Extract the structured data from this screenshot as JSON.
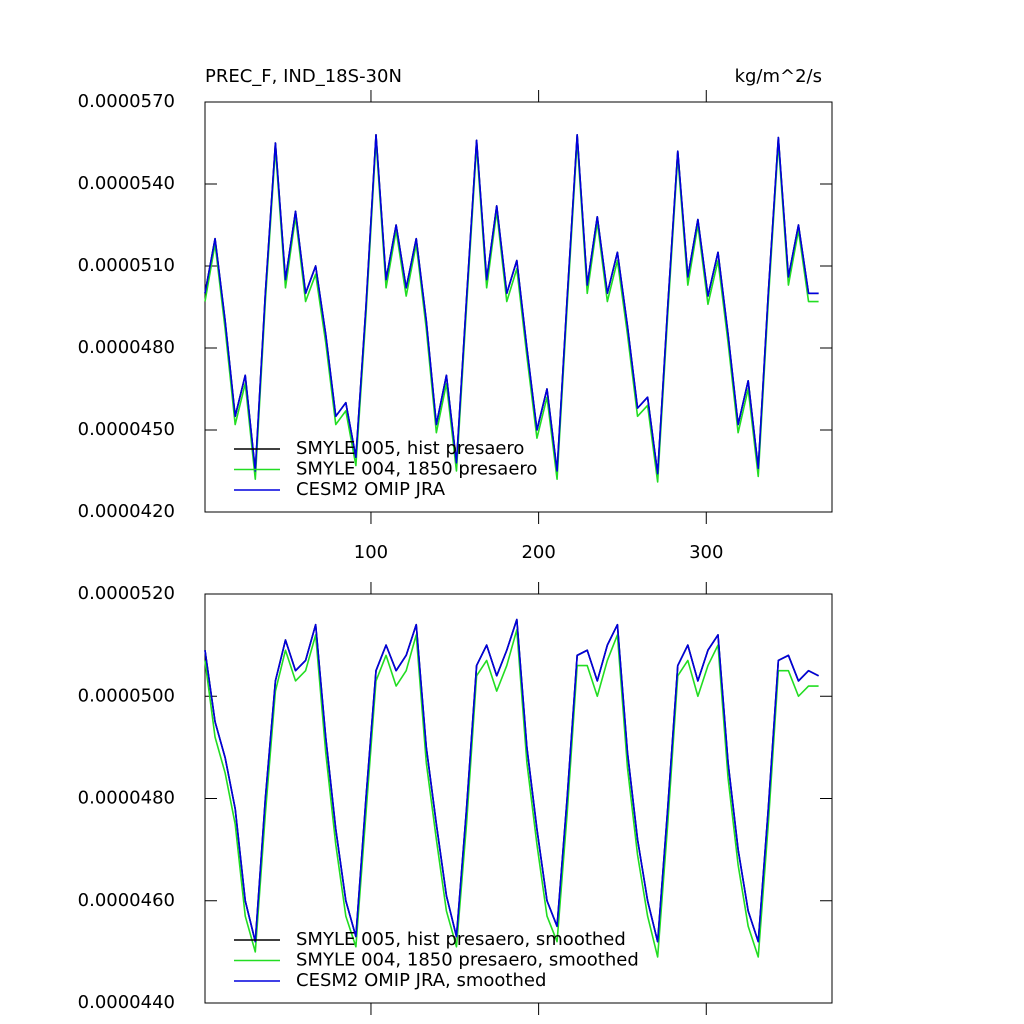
{
  "chart_data": [
    {
      "type": "line",
      "title": "PREC_F, IND_18S-30N",
      "units": "kg/m^2/s",
      "legend": "lower left",
      "xtick_labels_shown": true,
      "xlim": [
        1,
        375
      ],
      "xticks": [
        100,
        200,
        300
      ],
      "ylim": [
        4.2e-05,
        5.7e-05
      ],
      "yticks": [
        {
          "value": 4.2e-05,
          "label": "0.0000420"
        },
        {
          "value": 4.5e-05,
          "label": "0.0000450"
        },
        {
          "value": 4.8e-05,
          "label": "0.0000480"
        },
        {
          "value": 5.1e-05,
          "label": "0.0000510"
        },
        {
          "value": 5.4e-05,
          "label": "0.0000540"
        },
        {
          "value": 5.7e-05,
          "label": "0.0000570"
        }
      ],
      "x": [
        1,
        7,
        13,
        19,
        25,
        31,
        37,
        43,
        49,
        55,
        61,
        67,
        73,
        79,
        85,
        91,
        97,
        103,
        109,
        115,
        121,
        127,
        133,
        139,
        145,
        151,
        157,
        163,
        169,
        175,
        181,
        187,
        193,
        199,
        205,
        211,
        217,
        223,
        229,
        235,
        241,
        247,
        253,
        259,
        265,
        271,
        277,
        283,
        289,
        295,
        301,
        307,
        313,
        319,
        325,
        331,
        337,
        343,
        349,
        355,
        361,
        367
      ],
      "series": [
        {
          "name": "SMYLE 005, hist presaero",
          "color": "#000000",
          "values": [
            5e-05,
            5.2e-05,
            4.9e-05,
            4.55e-05,
            4.7e-05,
            4.35e-05,
            5e-05,
            5.55e-05,
            5.05e-05,
            5.3e-05,
            5e-05,
            5.1e-05,
            4.85e-05,
            4.55e-05,
            4.6e-05,
            4.4e-05,
            4.95e-05,
            5.58e-05,
            5.05e-05,
            5.25e-05,
            5.02e-05,
            5.2e-05,
            4.9e-05,
            4.52e-05,
            4.7e-05,
            4.38e-05,
            4.98e-05,
            5.56e-05,
            5.05e-05,
            5.32e-05,
            5e-05,
            5.12e-05,
            4.8e-05,
            4.5e-05,
            4.65e-05,
            4.35e-05,
            4.98e-05,
            5.58e-05,
            5.03e-05,
            5.28e-05,
            5e-05,
            5.15e-05,
            4.88e-05,
            4.58e-05,
            4.62e-05,
            4.34e-05,
            4.95e-05,
            5.52e-05,
            5.06e-05,
            5.27e-05,
            4.99e-05,
            5.15e-05,
            4.85e-05,
            4.52e-05,
            4.68e-05,
            4.36e-05,
            5e-05,
            5.57e-05,
            5.06e-05,
            5.25e-05,
            5e-05,
            5e-05
          ]
        },
        {
          "name": "SMYLE 004, 1850 presaero",
          "color": "#22dd22",
          "values": [
            4.97e-05,
            5.18e-05,
            4.87e-05,
            4.52e-05,
            4.67e-05,
            4.32e-05,
            4.97e-05,
            5.53e-05,
            5.02e-05,
            5.28e-05,
            4.97e-05,
            5.07e-05,
            4.82e-05,
            4.52e-05,
            4.57e-05,
            4.37e-05,
            4.92e-05,
            5.56e-05,
            5.02e-05,
            5.23e-05,
            4.99e-05,
            5.18e-05,
            4.87e-05,
            4.49e-05,
            4.67e-05,
            4.35e-05,
            4.95e-05,
            5.54e-05,
            5.02e-05,
            5.3e-05,
            4.97e-05,
            5.09e-05,
            4.77e-05,
            4.47e-05,
            4.62e-05,
            4.32e-05,
            4.95e-05,
            5.56e-05,
            5e-05,
            5.26e-05,
            4.97e-05,
            5.12e-05,
            4.85e-05,
            4.55e-05,
            4.59e-05,
            4.31e-05,
            4.92e-05,
            5.5e-05,
            5.03e-05,
            5.25e-05,
            4.96e-05,
            5.12e-05,
            4.82e-05,
            4.49e-05,
            4.65e-05,
            4.33e-05,
            4.97e-05,
            5.55e-05,
            5.03e-05,
            5.23e-05,
            4.97e-05,
            4.97e-05
          ]
        },
        {
          "name": "CESM2 OMIP JRA",
          "color": "#0000dd",
          "values": [
            5e-05,
            5.2e-05,
            4.9e-05,
            4.55e-05,
            4.7e-05,
            4.35e-05,
            5e-05,
            5.55e-05,
            5.05e-05,
            5.3e-05,
            5e-05,
            5.1e-05,
            4.85e-05,
            4.55e-05,
            4.6e-05,
            4.4e-05,
            4.95e-05,
            5.58e-05,
            5.05e-05,
            5.25e-05,
            5.02e-05,
            5.2e-05,
            4.9e-05,
            4.52e-05,
            4.7e-05,
            4.38e-05,
            4.98e-05,
            5.56e-05,
            5.05e-05,
            5.32e-05,
            5e-05,
            5.12e-05,
            4.8e-05,
            4.5e-05,
            4.65e-05,
            4.35e-05,
            4.98e-05,
            5.58e-05,
            5.03e-05,
            5.28e-05,
            5e-05,
            5.15e-05,
            4.88e-05,
            4.58e-05,
            4.62e-05,
            4.34e-05,
            4.95e-05,
            5.52e-05,
            5.06e-05,
            5.27e-05,
            4.99e-05,
            5.15e-05,
            4.85e-05,
            4.52e-05,
            4.68e-05,
            4.36e-05,
            5e-05,
            5.57e-05,
            5.06e-05,
            5.25e-05,
            5e-05,
            5e-05
          ]
        }
      ]
    },
    {
      "type": "line",
      "legend": "lower left",
      "xtick_labels_shown": false,
      "xlim": [
        1,
        375
      ],
      "xticks": [
        100,
        200,
        300
      ],
      "ylim": [
        4.4e-05,
        5.2e-05
      ],
      "yticks": [
        {
          "value": 4.4e-05,
          "label": "0.0000440"
        },
        {
          "value": 4.6e-05,
          "label": "0.0000460"
        },
        {
          "value": 4.8e-05,
          "label": "0.0000480"
        },
        {
          "value": 5e-05,
          "label": "0.0000500"
        },
        {
          "value": 5.2e-05,
          "label": "0.0000520"
        }
      ],
      "x": [
        1,
        7,
        13,
        19,
        25,
        31,
        37,
        43,
        49,
        55,
        61,
        67,
        73,
        79,
        85,
        91,
        97,
        103,
        109,
        115,
        121,
        127,
        133,
        139,
        145,
        151,
        157,
        163,
        169,
        175,
        181,
        187,
        193,
        199,
        205,
        211,
        217,
        223,
        229,
        235,
        241,
        247,
        253,
        259,
        265,
        271,
        277,
        283,
        289,
        295,
        301,
        307,
        313,
        319,
        325,
        331,
        337,
        343,
        349,
        355,
        361,
        367
      ],
      "series": [
        {
          "name": "SMYLE 005, hist presaero, smoothed",
          "color": "#000000",
          "values": [
            5.09e-05,
            4.95e-05,
            4.88e-05,
            4.78e-05,
            4.6e-05,
            4.52e-05,
            4.8e-05,
            5.03e-05,
            5.11e-05,
            5.05e-05,
            5.07e-05,
            5.14e-05,
            4.92e-05,
            4.74e-05,
            4.6e-05,
            4.53e-05,
            4.8e-05,
            5.05e-05,
            5.1e-05,
            5.05e-05,
            5.08e-05,
            5.14e-05,
            4.9e-05,
            4.75e-05,
            4.61e-05,
            4.53e-05,
            4.78e-05,
            5.06e-05,
            5.1e-05,
            5.04e-05,
            5.09e-05,
            5.15e-05,
            4.9e-05,
            4.74e-05,
            4.6e-05,
            4.55e-05,
            4.8e-05,
            5.08e-05,
            5.09e-05,
            5.03e-05,
            5.1e-05,
            5.14e-05,
            4.89e-05,
            4.72e-05,
            4.6e-05,
            4.52e-05,
            4.78e-05,
            5.06e-05,
            5.1e-05,
            5.03e-05,
            5.09e-05,
            5.12e-05,
            4.87e-05,
            4.7e-05,
            4.58e-05,
            4.52e-05,
            4.78e-05,
            5.07e-05,
            5.08e-05,
            5.03e-05,
            5.05e-05,
            5.04e-05
          ]
        },
        {
          "name": "SMYLE 004, 1850 presaero, smoothed",
          "color": "#22dd22",
          "values": [
            5.07e-05,
            4.92e-05,
            4.85e-05,
            4.75e-05,
            4.57e-05,
            4.5e-05,
            4.77e-05,
            5.01e-05,
            5.09e-05,
            5.03e-05,
            5.05e-05,
            5.12e-05,
            4.89e-05,
            4.71e-05,
            4.57e-05,
            4.51e-05,
            4.77e-05,
            5.03e-05,
            5.08e-05,
            5.02e-05,
            5.05e-05,
            5.12e-05,
            4.87e-05,
            4.72e-05,
            4.58e-05,
            4.51e-05,
            4.75e-05,
            5.04e-05,
            5.07e-05,
            5.01e-05,
            5.06e-05,
            5.13e-05,
            4.87e-05,
            4.71e-05,
            4.57e-05,
            4.52e-05,
            4.77e-05,
            5.06e-05,
            5.06e-05,
            5e-05,
            5.07e-05,
            5.12e-05,
            4.86e-05,
            4.69e-05,
            4.57e-05,
            4.49e-05,
            4.75e-05,
            5.04e-05,
            5.07e-05,
            5e-05,
            5.06e-05,
            5.1e-05,
            4.84e-05,
            4.67e-05,
            4.55e-05,
            4.49e-05,
            4.75e-05,
            5.05e-05,
            5.05e-05,
            5e-05,
            5.02e-05,
            5.02e-05
          ]
        },
        {
          "name": "CESM2 OMIP JRA, smoothed",
          "color": "#0000dd",
          "values": [
            5.09e-05,
            4.95e-05,
            4.88e-05,
            4.78e-05,
            4.6e-05,
            4.52e-05,
            4.8e-05,
            5.03e-05,
            5.11e-05,
            5.05e-05,
            5.07e-05,
            5.14e-05,
            4.92e-05,
            4.74e-05,
            4.6e-05,
            4.53e-05,
            4.8e-05,
            5.05e-05,
            5.1e-05,
            5.05e-05,
            5.08e-05,
            5.14e-05,
            4.9e-05,
            4.75e-05,
            4.61e-05,
            4.53e-05,
            4.78e-05,
            5.06e-05,
            5.1e-05,
            5.04e-05,
            5.09e-05,
            5.15e-05,
            4.9e-05,
            4.74e-05,
            4.6e-05,
            4.55e-05,
            4.8e-05,
            5.08e-05,
            5.09e-05,
            5.03e-05,
            5.1e-05,
            5.14e-05,
            4.89e-05,
            4.72e-05,
            4.6e-05,
            4.52e-05,
            4.78e-05,
            5.06e-05,
            5.1e-05,
            5.03e-05,
            5.09e-05,
            5.12e-05,
            4.87e-05,
            4.7e-05,
            4.58e-05,
            4.52e-05,
            4.78e-05,
            5.07e-05,
            5.08e-05,
            5.03e-05,
            5.05e-05,
            5.04e-05
          ]
        }
      ]
    }
  ]
}
